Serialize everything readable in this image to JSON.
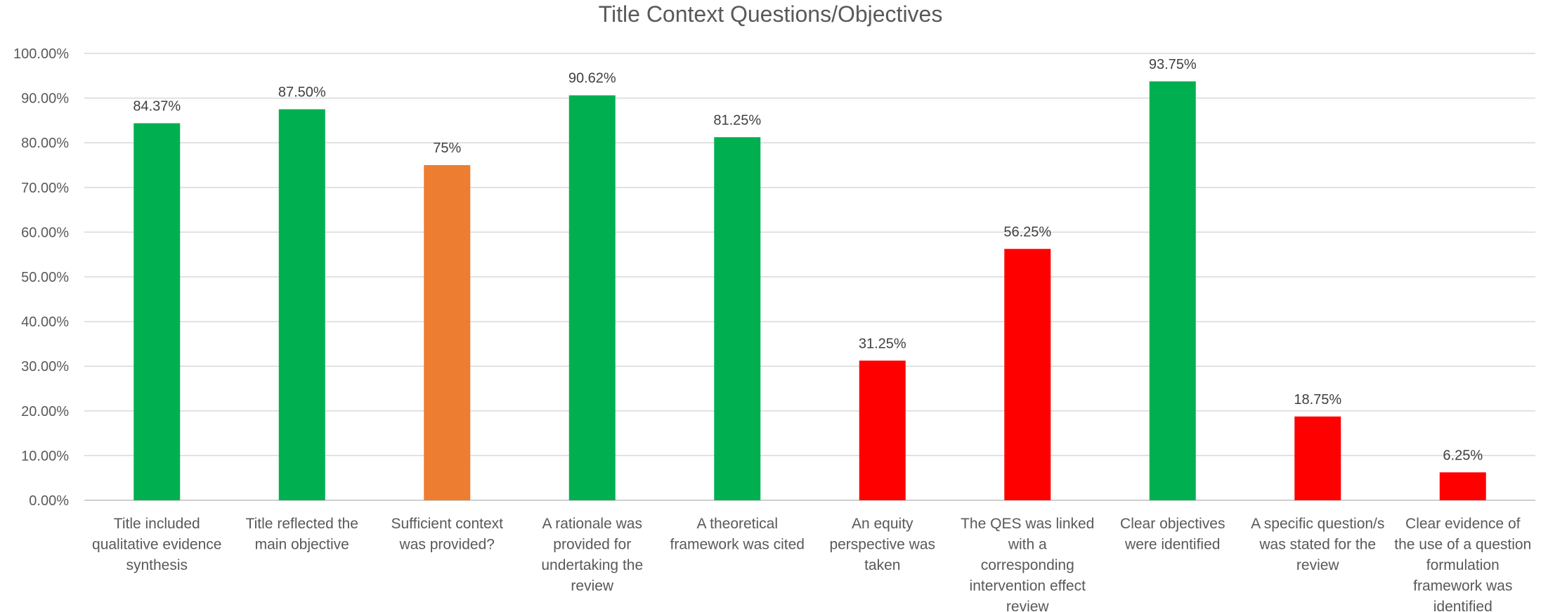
{
  "chart_data": {
    "type": "bar",
    "title": "Title Context Questions/Objectives",
    "xlabel": "",
    "ylabel": "",
    "ylim": [
      0,
      100
    ],
    "y_ticks": [
      "0.00%",
      "10.00%",
      "20.00%",
      "30.00%",
      "40.00%",
      "50.00%",
      "60.00%",
      "70.00%",
      "80.00%",
      "90.00%",
      "100.00%"
    ],
    "grid": true,
    "categories": [
      "Title included qualitative evidence synthesis",
      "Title reflected the main objective",
      "Sufficient context was provided?",
      "A rationale was provided for undertaking the review",
      "A theoretical framework was cited",
      "An equity perspective was taken",
      "The QES was linked with a corresponding intervention effect review",
      "Clear objectives were identified",
      "A specific question/s was stated for the review",
      "Clear evidence of the use of a question formulation framework was identified"
    ],
    "category_lines": [
      [
        "Title included",
        "qualitative evidence",
        "synthesis"
      ],
      [
        "Title reflected the",
        "main objective"
      ],
      [
        "Sufficient context",
        "was provided?"
      ],
      [
        "A rationale was",
        "provided for",
        "undertaking the",
        "review"
      ],
      [
        "A theoretical",
        "framework was cited"
      ],
      [
        "An equity",
        "perspective was",
        "taken"
      ],
      [
        "The QES was linked",
        "with a",
        "corresponding",
        "intervention effect",
        "review"
      ],
      [
        "Clear objectives",
        "were identified"
      ],
      [
        "A specific question/s",
        "was stated for the",
        "review"
      ],
      [
        "Clear evidence of",
        "the use of a question",
        "formulation",
        "framework was",
        "identified"
      ]
    ],
    "values": [
      84.37,
      87.5,
      75,
      90.62,
      81.25,
      31.25,
      56.25,
      93.75,
      18.75,
      6.25
    ],
    "data_labels": [
      "84.37%",
      "87.50%",
      "75%",
      "90.62%",
      "81.25%",
      "31.25%",
      "56.25%",
      "93.75%",
      "18.75%",
      "6.25%"
    ],
    "bar_colors": [
      "#00b050",
      "#00b050",
      "#ed7d31",
      "#00b050",
      "#00b050",
      "#ff0000",
      "#ff0000",
      "#00b050",
      "#ff0000",
      "#ff0000"
    ],
    "colors": {
      "text": "#595959",
      "label_text": "#404040",
      "grid": "#d9d9d9",
      "axis": "#bfbfbf"
    }
  }
}
